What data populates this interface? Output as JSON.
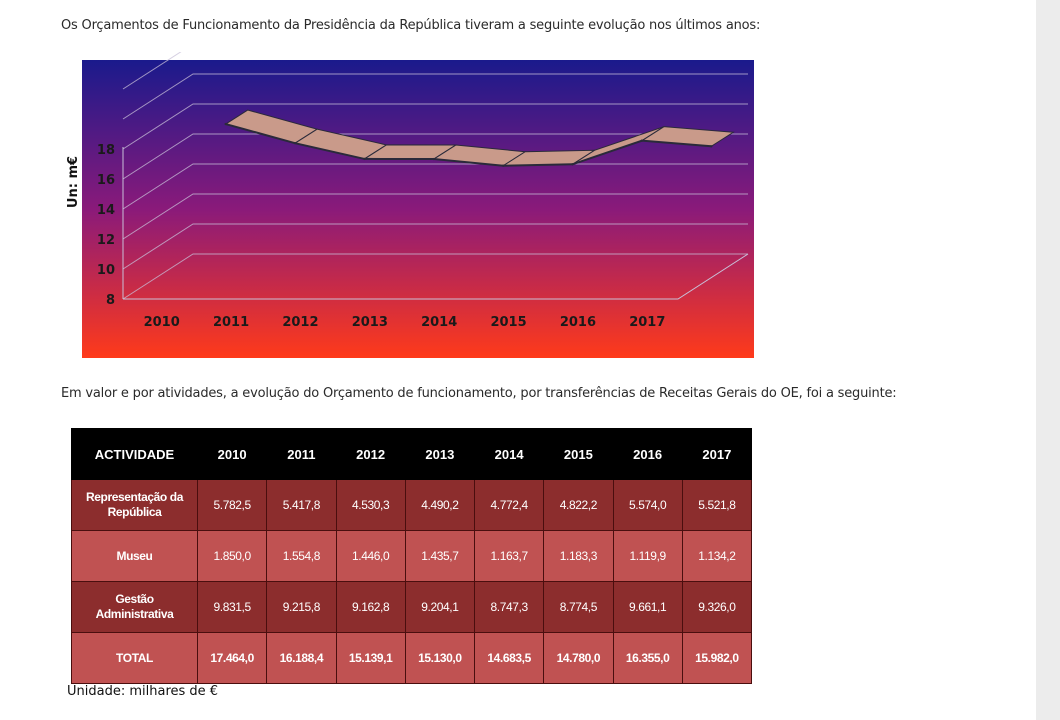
{
  "intro_text": "Os Orçamentos de Funcionamento da Presidência da República tiveram a seguinte evolução nos últimos anos:",
  "table_intro_text": "Em valor e por atividades, a evolução do Orçamento de funcionamento, por transferências de Receitas Gerais do OE, foi a seguinte:",
  "chart_data": {
    "type": "area",
    "categories": [
      "2010",
      "2011",
      "2012",
      "2013",
      "2014",
      "2015",
      "2016",
      "2017"
    ],
    "series": [
      {
        "values": [
          17.464,
          16.1884,
          15.1391,
          15.13,
          14.6835,
          14.78,
          16.355,
          15.982
        ]
      }
    ],
    "title": "",
    "xlabel": "",
    "ylabel": "Un: m€",
    "ylim": [
      8,
      18
    ],
    "yticks": [
      "8",
      "10",
      "12",
      "14",
      "16",
      "18"
    ],
    "grid": true,
    "legend": "none",
    "colors": {
      "background_top": "#1a1a8c",
      "background_mid": "#8a1a7a",
      "background_bottom": "#ff3a1a",
      "ribbon_fill": "#c99a8a",
      "ribbon_stroke": "#2a2a3a",
      "tick_label": "#1a1a1a"
    }
  },
  "table": {
    "headers": [
      "ACTIVIDADE",
      "2010",
      "2011",
      "2012",
      "2013",
      "2014",
      "2015",
      "2016",
      "2017"
    ],
    "rows": [
      {
        "label": "Representação da República",
        "values": [
          "5.782,5",
          "5.417,8",
          "4.530,3",
          "4.490,2",
          "4.772,4",
          "4.822,2",
          "5.574,0",
          "5.521,8"
        ],
        "style": "dark"
      },
      {
        "label": "Museu",
        "values": [
          "1.850,0",
          "1.554,8",
          "1.446,0",
          "1.435,7",
          "1.163,7",
          "1.183,3",
          "1.119,9",
          "1.134,2"
        ],
        "style": "light"
      },
      {
        "label": "Gestão Administrativa",
        "values": [
          "9.831,5",
          "9.215,8",
          "9.162,8",
          "9.204,1",
          "8.747,3",
          "8.774,5",
          "9.661,1",
          "9.326,0"
        ],
        "style": "dark"
      },
      {
        "label": "TOTAL",
        "values": [
          "17.464,0",
          "16.188,4",
          "15.139,1",
          "15.130,0",
          "14.683,5",
          "14.780,0",
          "16.355,0",
          "15.982,0"
        ],
        "style": "light total"
      }
    ]
  },
  "unit_note": "Unidade: milhares de €"
}
